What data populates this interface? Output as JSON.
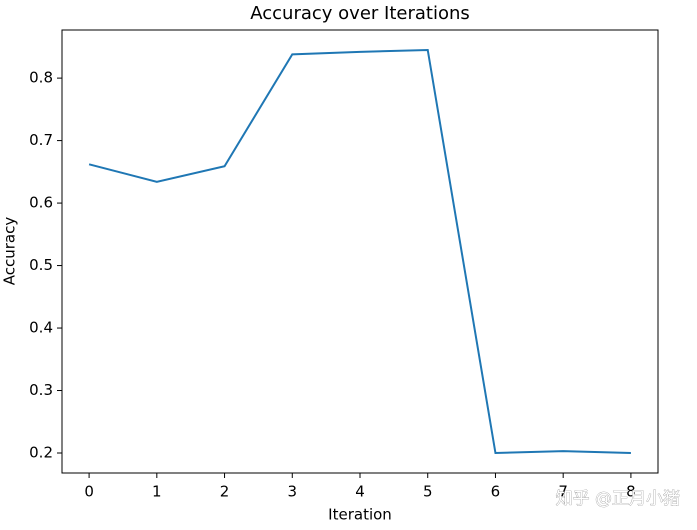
{
  "chart_data": {
    "type": "line",
    "title": "Accuracy over Iterations",
    "x_label": "Iteration",
    "y_label": "Accuracy",
    "x": [
      0,
      1,
      2,
      3,
      4,
      5,
      6,
      7,
      8
    ],
    "series": [
      {
        "name": "Accuracy",
        "color": "#1f77b4",
        "values": [
          0.662,
          0.634,
          0.659,
          0.838,
          0.842,
          0.845,
          0.2,
          0.203,
          0.2
        ]
      }
    ],
    "xlim": [
      -0.4,
      8.4
    ],
    "xticks": [
      0,
      1,
      2,
      3,
      4,
      5,
      6,
      7,
      8
    ],
    "ylim": [
      0.168,
      0.877
    ],
    "yticks": [
      0.2,
      0.3,
      0.4,
      0.5,
      0.6,
      0.7,
      0.8
    ],
    "grid": false
  },
  "watermark": "知乎 @正月小猪"
}
